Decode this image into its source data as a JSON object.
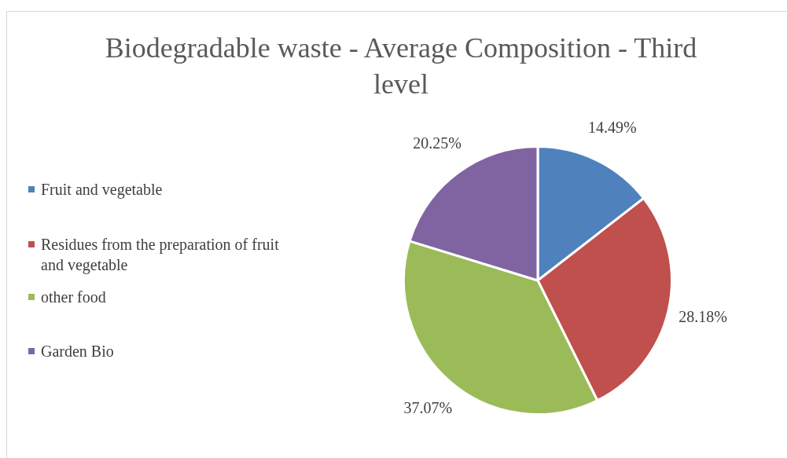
{
  "chart_data": {
    "type": "pie",
    "title": "Biodegradable waste - Average Composition - Third level",
    "categories": [
      "Fruit and vegetable",
      "Residues from the preparation of fruit and vegetable",
      "other food",
      "Garden Bio"
    ],
    "values": [
      14.49,
      28.18,
      37.07,
      20.25
    ],
    "value_labels": [
      "14.49%",
      "28.18%",
      "37.07%",
      "20.25%"
    ],
    "colors": [
      "#4f81bd",
      "#c0504d",
      "#9bbb59",
      "#8064a2"
    ],
    "legend": "left"
  }
}
